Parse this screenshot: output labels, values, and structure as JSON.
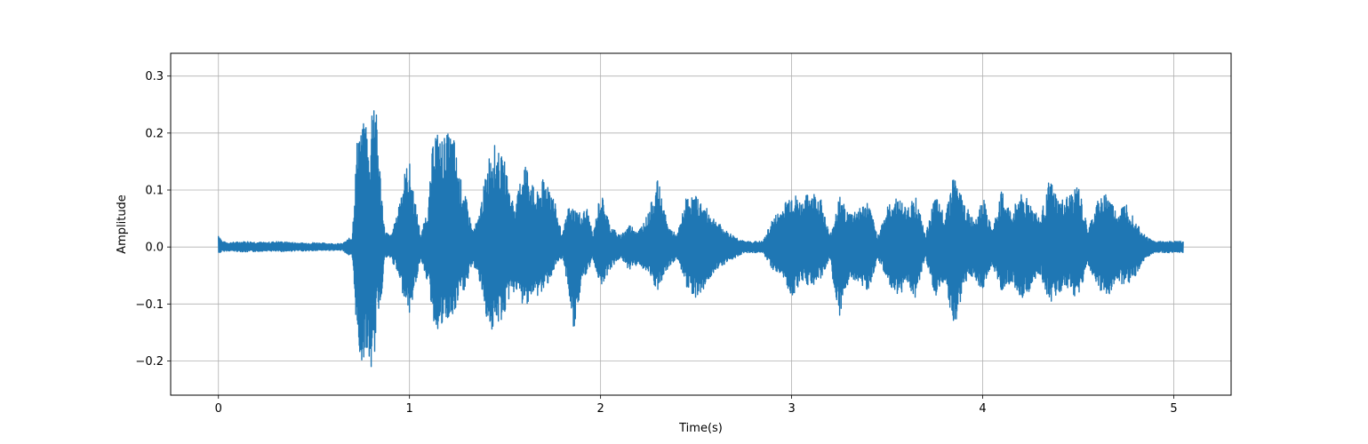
{
  "chart_data": {
    "type": "line",
    "title": "",
    "xlabel": "Time(s)",
    "ylabel": "Amplitude",
    "xlim": [
      -0.25,
      5.3
    ],
    "ylim": [
      -0.26,
      0.34
    ],
    "xticks": [
      0,
      1,
      2,
      3,
      4,
      5
    ],
    "xtick_labels": [
      "0",
      "1",
      "2",
      "3",
      "4",
      "5"
    ],
    "yticks": [
      -0.2,
      -0.1,
      0.0,
      0.1,
      0.2,
      0.3
    ],
    "ytick_labels": [
      "−0.2",
      "−0.1",
      "0.0",
      "0.1",
      "0.2",
      "0.3"
    ],
    "grid": true,
    "color": "#1f77b4",
    "series": [
      {
        "x": [
          0.0,
          0.02,
          0.05,
          0.1,
          0.15,
          0.2,
          0.25,
          0.3,
          0.35,
          0.4,
          0.45,
          0.5,
          0.55,
          0.6,
          0.65,
          0.7,
          0.73,
          0.75,
          0.77,
          0.79,
          0.81,
          0.83,
          0.85,
          0.87,
          0.9,
          0.93,
          0.96,
          0.98,
          1.0,
          1.03,
          1.06,
          1.1,
          1.13,
          1.16,
          1.2,
          1.23,
          1.26,
          1.3,
          1.33,
          1.36,
          1.4,
          1.43,
          1.46,
          1.5,
          1.53,
          1.56,
          1.6,
          1.63,
          1.66,
          1.7,
          1.73,
          1.76,
          1.8,
          1.83,
          1.86,
          1.9,
          1.93,
          1.96,
          2.0,
          2.05,
          2.1,
          2.15,
          2.2,
          2.25,
          2.3,
          2.35,
          2.4,
          2.45,
          2.5,
          2.55,
          2.6,
          2.65,
          2.7,
          2.75,
          2.8,
          2.85,
          2.9,
          2.95,
          3.0,
          3.05,
          3.1,
          3.15,
          3.2,
          3.25,
          3.3,
          3.35,
          3.4,
          3.45,
          3.5,
          3.55,
          3.6,
          3.65,
          3.7,
          3.75,
          3.8,
          3.85,
          3.9,
          3.95,
          4.0,
          4.05,
          4.1,
          4.15,
          4.2,
          4.25,
          4.3,
          4.35,
          4.4,
          4.45,
          4.5,
          4.55,
          4.6,
          4.65,
          4.7,
          4.75,
          4.8,
          4.85,
          4.9,
          4.95,
          5.0,
          5.05
        ],
        "y_max": [
          0.025,
          0.01,
          0.008,
          0.009,
          0.01,
          0.009,
          0.008,
          0.01,
          0.009,
          0.008,
          0.007,
          0.008,
          0.007,
          0.006,
          0.006,
          0.02,
          0.22,
          0.2,
          0.24,
          0.15,
          0.31,
          0.22,
          0.12,
          0.03,
          0.02,
          0.05,
          0.11,
          0.14,
          0.15,
          0.08,
          0.02,
          0.08,
          0.22,
          0.19,
          0.2,
          0.2,
          0.13,
          0.08,
          0.03,
          0.05,
          0.13,
          0.19,
          0.17,
          0.15,
          0.09,
          0.08,
          0.16,
          0.13,
          0.09,
          0.12,
          0.12,
          0.08,
          0.02,
          0.07,
          0.07,
          0.06,
          0.07,
          0.02,
          0.1,
          0.04,
          0.02,
          0.04,
          0.03,
          0.06,
          0.12,
          0.04,
          0.02,
          0.09,
          0.09,
          0.07,
          0.05,
          0.03,
          0.02,
          0.01,
          0.01,
          0.01,
          0.05,
          0.07,
          0.1,
          0.08,
          0.1,
          0.09,
          0.02,
          0.09,
          0.06,
          0.07,
          0.08,
          0.02,
          0.07,
          0.09,
          0.07,
          0.09,
          0.02,
          0.09,
          0.06,
          0.13,
          0.08,
          0.05,
          0.09,
          0.03,
          0.1,
          0.06,
          0.1,
          0.08,
          0.05,
          0.12,
          0.08,
          0.09,
          0.11,
          0.03,
          0.08,
          0.1,
          0.06,
          0.08,
          0.05,
          0.02,
          0.01,
          0.01,
          0.01,
          0.01
        ],
        "y_min": [
          -0.012,
          -0.008,
          -0.007,
          -0.008,
          -0.009,
          -0.008,
          -0.007,
          -0.008,
          -0.008,
          -0.007,
          -0.007,
          -0.007,
          -0.006,
          -0.006,
          -0.006,
          -0.02,
          -0.18,
          -0.21,
          -0.18,
          -0.21,
          -0.23,
          -0.12,
          -0.1,
          -0.02,
          -0.02,
          -0.04,
          -0.08,
          -0.09,
          -0.12,
          -0.07,
          -0.02,
          -0.07,
          -0.14,
          -0.15,
          -0.13,
          -0.13,
          -0.09,
          -0.07,
          -0.03,
          -0.05,
          -0.12,
          -0.15,
          -0.14,
          -0.12,
          -0.08,
          -0.08,
          -0.11,
          -0.09,
          -0.09,
          -0.08,
          -0.06,
          -0.04,
          -0.02,
          -0.07,
          -0.16,
          -0.06,
          -0.05,
          -0.02,
          -0.07,
          -0.04,
          -0.02,
          -0.04,
          -0.03,
          -0.05,
          -0.08,
          -0.04,
          -0.02,
          -0.07,
          -0.09,
          -0.07,
          -0.04,
          -0.03,
          -0.02,
          -0.01,
          -0.01,
          -0.01,
          -0.04,
          -0.05,
          -0.09,
          -0.06,
          -0.07,
          -0.06,
          -0.02,
          -0.14,
          -0.06,
          -0.06,
          -0.08,
          -0.02,
          -0.06,
          -0.09,
          -0.07,
          -0.09,
          -0.02,
          -0.09,
          -0.06,
          -0.15,
          -0.07,
          -0.05,
          -0.08,
          -0.03,
          -0.08,
          -0.06,
          -0.09,
          -0.08,
          -0.05,
          -0.1,
          -0.08,
          -0.08,
          -0.09,
          -0.03,
          -0.07,
          -0.09,
          -0.06,
          -0.07,
          -0.05,
          -0.02,
          -0.01,
          -0.01,
          -0.01,
          -0.01
        ]
      }
    ]
  }
}
